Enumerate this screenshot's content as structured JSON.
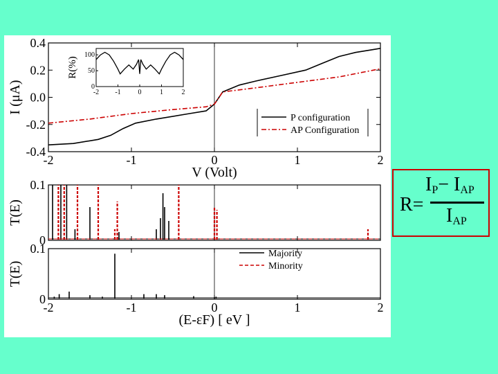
{
  "chart_data": [
    {
      "type": "line",
      "xlabel": "V (Volt)",
      "ylabel": "I (μA)",
      "xlim": [
        -2,
        2
      ],
      "ylim": [
        -0.4,
        0.4
      ],
      "xticks": [
        "-2",
        "-1",
        "0",
        "1",
        "2"
      ],
      "yticks": [
        "-0.4",
        "-0.2",
        "0.0",
        "0.2",
        "0.4"
      ],
      "legend_position": "bottom-right",
      "series": [
        {
          "name": "P configuration",
          "color": "#000000",
          "style": "solid",
          "x": [
            -2.0,
            -1.7,
            -1.4,
            -1.25,
            -1.1,
            -0.95,
            -0.7,
            -0.3,
            -0.1,
            0.0,
            0.1,
            0.3,
            0.5,
            0.8,
            1.1,
            1.3,
            1.5,
            1.7,
            1.9,
            2.0
          ],
          "y": [
            -0.35,
            -0.34,
            -0.31,
            -0.28,
            -0.23,
            -0.19,
            -0.16,
            -0.12,
            -0.1,
            -0.05,
            0.04,
            0.09,
            0.12,
            0.16,
            0.2,
            0.25,
            0.3,
            0.33,
            0.35,
            0.36
          ]
        },
        {
          "name": "AP Configuration",
          "color": "#cc0000",
          "style": "dashdot",
          "x": [
            -2.0,
            -1.5,
            -1.0,
            -0.5,
            -0.1,
            0.0,
            0.1,
            0.5,
            1.0,
            1.5,
            2.0
          ],
          "y": [
            -0.19,
            -0.16,
            -0.12,
            -0.09,
            -0.07,
            -0.05,
            0.04,
            0.07,
            0.11,
            0.15,
            0.21
          ]
        }
      ],
      "inset": {
        "type": "line",
        "ylabel": "R(%)",
        "xlim": [
          -2,
          2
        ],
        "ylim": [
          0,
          120
        ],
        "xticks": [
          "-2",
          "-1",
          "0",
          "1",
          "2"
        ],
        "yticks": [
          "0",
          "50",
          "100"
        ],
        "x": [
          -2.0,
          -1.8,
          -1.6,
          -1.4,
          -1.2,
          -1.0,
          -0.9,
          -0.7,
          -0.5,
          -0.3,
          -0.15,
          -0.05,
          0.0,
          0.05,
          0.15,
          0.3,
          0.5,
          0.7,
          0.9,
          1.0,
          1.2,
          1.4,
          1.6,
          1.8,
          2.0
        ],
        "y": [
          85,
          100,
          108,
          100,
          80,
          55,
          40,
          55,
          68,
          55,
          70,
          85,
          40,
          85,
          70,
          55,
          68,
          55,
          40,
          55,
          80,
          100,
          108,
          100,
          85
        ]
      }
    },
    {
      "type": "line",
      "ylabel": "T(E)",
      "xlim": [
        -2,
        2
      ],
      "ylim": [
        0,
        0.1
      ],
      "yticks": [
        "0",
        "0.1"
      ],
      "series": [
        {
          "name": "Majority",
          "color": "#000000",
          "style": "solid",
          "peaks_x": [
            -1.95,
            -1.85,
            -1.78,
            -1.68,
            -1.5,
            -1.15,
            -0.7,
            -0.65,
            -0.62,
            -0.6,
            -0.55,
            0.0
          ],
          "peaks_y": [
            0.1,
            0.1,
            0.1,
            0.02,
            0.06,
            0.015,
            0.02,
            0.04,
            0.085,
            0.06,
            0.035,
            0.005
          ]
        },
        {
          "name": "Minority",
          "color": "#cc0000",
          "style": "dashed",
          "peaks_x": [
            -1.88,
            -1.81,
            -1.65,
            -1.4,
            -1.2,
            -1.17,
            -0.43,
            0.0,
            0.03,
            1.85
          ],
          "peaks_y": [
            0.1,
            0.1,
            0.1,
            0.1,
            0.02,
            0.07,
            0.1,
            0.06,
            0.055,
            0.02
          ]
        }
      ]
    },
    {
      "type": "line",
      "xlabel": "(E-εF) [ eV ]",
      "ylabel": "T(E)",
      "xlim": [
        -2,
        2
      ],
      "ylim": [
        0,
        0.1
      ],
      "xticks": [
        "-2",
        "-1",
        "0",
        "1",
        "2"
      ],
      "yticks": [
        "0",
        "0.1"
      ],
      "legend_position": "top-right",
      "series": [
        {
          "name": "Majority",
          "color": "#000000",
          "style": "solid",
          "peaks_x": [
            -1.93,
            -1.87,
            -1.75,
            -1.5,
            -1.35,
            -1.2,
            -0.85,
            -0.7,
            -0.6,
            -0.25,
            0.0,
            0.02
          ],
          "peaks_y": [
            0.005,
            0.01,
            0.015,
            0.008,
            0.005,
            0.09,
            0.01,
            0.01,
            0.008,
            0.006,
            0.004,
            0.005
          ]
        },
        {
          "name": "Minority",
          "color": "#cc0000",
          "style": "dashed",
          "peaks_x": [],
          "peaks_y": []
        }
      ]
    }
  ],
  "formula": {
    "lhs": "R=",
    "num_I1": "I",
    "num_sub1": "P",
    "minus": "−",
    "num_I2": "I",
    "num_sub2": "AP",
    "den_I": "I",
    "den_sub": "AP"
  }
}
